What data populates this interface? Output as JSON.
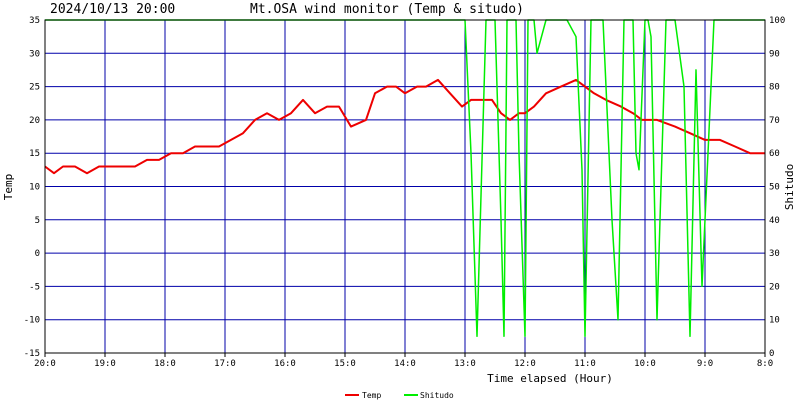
{
  "chart_data": {
    "type": "line",
    "datetime": "2024/10/13 20:00",
    "title": "Mt.OSA wind monitor (Temp & situdo)",
    "xlabel": "Time elapsed (Hour)",
    "ylabel_left": "Temp",
    "ylabel_right": "Shitudo",
    "ylim_left": [
      -15,
      35
    ],
    "ylim_right": [
      0,
      100
    ],
    "xlim_hours_elapsed": [
      0,
      12
    ],
    "x_ticks": [
      "20:0",
      "19:0",
      "18:0",
      "17:0",
      "16:0",
      "15:0",
      "14:0",
      "13:0",
      "12:0",
      "11:0",
      "10:0",
      "9:0",
      "8:0"
    ],
    "y_ticks_left": [
      35,
      30,
      25,
      20,
      15,
      10,
      5,
      0,
      -5,
      -10,
      -15
    ],
    "y_ticks_right": [
      100,
      90,
      80,
      70,
      60,
      50,
      40,
      30,
      20,
      10,
      0
    ],
    "grid": true,
    "legend_position": "bottom-center",
    "series": [
      {
        "name": "Temp",
        "color": "#ee0000",
        "axis": "left",
        "x": [
          0,
          0.15,
          0.3,
          0.5,
          0.7,
          0.9,
          1.1,
          1.3,
          1.5,
          1.7,
          1.9,
          2.1,
          2.3,
          2.5,
          2.7,
          2.9,
          3.1,
          3.3,
          3.5,
          3.7,
          3.9,
          4.1,
          4.3,
          4.5,
          4.7,
          4.9,
          5.1,
          5.35,
          5.5,
          5.7,
          5.85,
          6.0,
          6.2,
          6.35,
          6.55,
          6.75,
          6.95,
          7.1,
          7.25,
          7.45,
          7.6,
          7.75,
          7.9,
          8.0,
          8.15,
          8.35,
          8.6,
          8.85,
          9.0,
          9.15,
          9.35,
          9.6,
          9.8,
          9.95,
          10.2,
          10.5,
          10.75,
          11.0,
          11.25,
          11.5,
          11.75,
          12.0
        ],
        "values": [
          13,
          12,
          13,
          13,
          12,
          13,
          13,
          13,
          13,
          14,
          14,
          15,
          15,
          16,
          16,
          16,
          17,
          18,
          20,
          21,
          20,
          21,
          23,
          21,
          22,
          22,
          19,
          20,
          24,
          25,
          25,
          24,
          25,
          25,
          26,
          24,
          22,
          23,
          23,
          23,
          21,
          20,
          21,
          21,
          22,
          24,
          25,
          26,
          25,
          24,
          23,
          22,
          21,
          20,
          20,
          19,
          18,
          17,
          17,
          16,
          15,
          15
        ]
      },
      {
        "name": "Shitudo",
        "color": "#00ee00",
        "axis": "right",
        "x": [
          0,
          7.0,
          7.1,
          7.2,
          7.35,
          7.5,
          7.6,
          7.65,
          7.7,
          7.85,
          7.9,
          8.0,
          8.05,
          8.15,
          8.2,
          8.35,
          8.5,
          8.7,
          8.85,
          8.95,
          9.0,
          9.1,
          9.3,
          9.45,
          9.55,
          9.65,
          9.8,
          9.85,
          9.9,
          10.0,
          10.05,
          10.1,
          10.2,
          10.35,
          10.5,
          10.65,
          10.75,
          10.85,
          10.95,
          11.15,
          11.3,
          12.0
        ],
        "values": [
          100,
          100,
          60,
          5,
          100,
          100,
          40,
          5,
          100,
          100,
          60,
          5,
          100,
          100,
          90,
          100,
          100,
          100,
          95,
          55,
          5,
          100,
          100,
          40,
          10,
          100,
          100,
          60,
          55,
          100,
          100,
          95,
          10,
          100,
          100,
          80,
          5,
          85,
          20,
          100,
          100,
          100
        ]
      }
    ]
  },
  "colors": {
    "grid": "#0000aa",
    "axis": "#000000",
    "background": "#ffffff"
  }
}
